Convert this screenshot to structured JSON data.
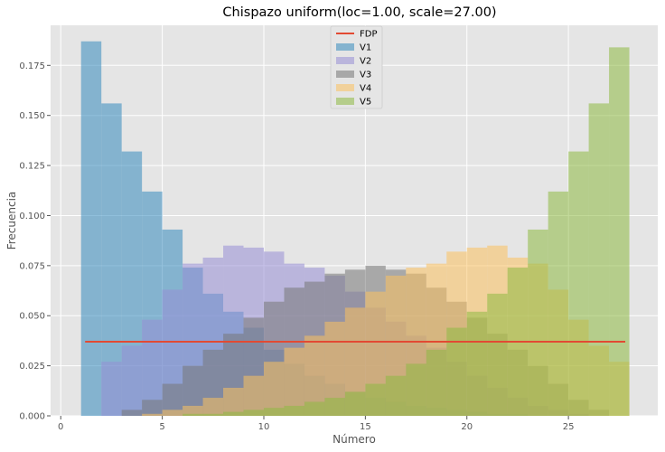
{
  "chart_data": {
    "type": "bar",
    "title": "Chispazo uniform(loc=1.00, scale=27.00)",
    "xlabel": "Número",
    "ylabel": "Frecuencia",
    "xlim": [
      -0.5,
      29.4
    ],
    "ylim": [
      0,
      0.195
    ],
    "x_ticks": [
      0,
      5,
      10,
      15,
      20,
      25
    ],
    "x_tick_labels": [
      "0",
      "5",
      "10",
      "15",
      "20",
      "25"
    ],
    "y_ticks": [
      0,
      0.025,
      0.05,
      0.075,
      0.1,
      0.125,
      0.15,
      0.175
    ],
    "y_tick_labels": [
      "0.000",
      "0.025",
      "0.050",
      "0.075",
      "0.100",
      "0.125",
      "0.150",
      "0.175"
    ],
    "grid": true,
    "legend_position": "top-center",
    "legend": [
      "FDP",
      "V1",
      "V2",
      "V3",
      "V4",
      "V5"
    ],
    "pdf_line": {
      "name": "FDP",
      "x": [
        1.2,
        27.8
      ],
      "y": [
        0.037,
        0.037
      ],
      "color": "#E24A33"
    },
    "series": [
      {
        "name": "V1",
        "color": "#348ABD",
        "bins": [
          [
            1.0,
            2.0,
            0.187
          ],
          [
            2.0,
            3.0,
            0.156
          ],
          [
            3.0,
            4.0,
            0.132
          ],
          [
            4.0,
            5.0,
            0.112
          ],
          [
            5.0,
            6.0,
            0.093
          ],
          [
            6.0,
            7.0,
            0.074
          ],
          [
            7.0,
            8.0,
            0.061
          ],
          [
            8.0,
            9.0,
            0.052
          ],
          [
            9.0,
            10.0,
            0.044
          ],
          [
            10.0,
            11.0,
            0.033
          ],
          [
            11.0,
            12.0,
            0.026
          ],
          [
            12.0,
            13.0,
            0.02
          ],
          [
            13.0,
            14.0,
            0.016
          ],
          [
            14.0,
            15.0,
            0.012
          ],
          [
            15.0,
            16.0,
            0.009
          ],
          [
            16.0,
            17.0,
            0.007
          ],
          [
            17.0,
            18.0,
            0.005
          ],
          [
            18.0,
            19.0,
            0.004
          ],
          [
            19.0,
            20.0,
            0.003
          ],
          [
            20.0,
            21.0,
            0.002
          ],
          [
            21.0,
            22.0,
            0.001
          ],
          [
            22.0,
            23.0,
            0.001
          ]
        ]
      },
      {
        "name": "V2",
        "color": "#988ED5",
        "bins": [
          [
            2.0,
            3.0,
            0.027
          ],
          [
            3.0,
            4.0,
            0.035
          ],
          [
            4.0,
            5.0,
            0.048
          ],
          [
            5.0,
            6.0,
            0.063
          ],
          [
            6.0,
            7.0,
            0.076
          ],
          [
            7.0,
            8.0,
            0.079
          ],
          [
            8.0,
            9.0,
            0.085
          ],
          [
            9.0,
            10.0,
            0.084
          ],
          [
            10.0,
            11.0,
            0.082
          ],
          [
            11.0,
            12.0,
            0.076
          ],
          [
            12.0,
            13.0,
            0.074
          ],
          [
            13.0,
            14.0,
            0.07
          ],
          [
            14.0,
            15.0,
            0.062
          ],
          [
            15.0,
            16.0,
            0.054
          ],
          [
            16.0,
            17.0,
            0.047
          ],
          [
            17.0,
            18.0,
            0.04
          ],
          [
            18.0,
            19.0,
            0.034
          ],
          [
            19.0,
            20.0,
            0.027
          ],
          [
            20.0,
            21.0,
            0.02
          ],
          [
            21.0,
            22.0,
            0.014
          ],
          [
            22.0,
            23.0,
            0.009
          ],
          [
            23.0,
            24.0,
            0.005
          ],
          [
            24.0,
            25.0,
            0.003
          ],
          [
            25.0,
            26.0,
            0.001
          ]
        ]
      },
      {
        "name": "V3",
        "color": "#777777",
        "bins": [
          [
            3.0,
            4.0,
            0.003
          ],
          [
            4.0,
            5.0,
            0.008
          ],
          [
            5.0,
            6.0,
            0.016
          ],
          [
            6.0,
            7.0,
            0.025
          ],
          [
            7.0,
            8.0,
            0.033
          ],
          [
            8.0,
            9.0,
            0.041
          ],
          [
            9.0,
            10.0,
            0.049
          ],
          [
            10.0,
            11.0,
            0.057
          ],
          [
            11.0,
            12.0,
            0.064
          ],
          [
            12.0,
            13.0,
            0.067
          ],
          [
            13.0,
            14.0,
            0.071
          ],
          [
            14.0,
            15.0,
            0.073
          ],
          [
            15.0,
            16.0,
            0.075
          ],
          [
            16.0,
            17.0,
            0.073
          ],
          [
            17.0,
            18.0,
            0.071
          ],
          [
            18.0,
            19.0,
            0.064
          ],
          [
            19.0,
            20.0,
            0.057
          ],
          [
            20.0,
            21.0,
            0.049
          ],
          [
            21.0,
            22.0,
            0.041
          ],
          [
            22.0,
            23.0,
            0.033
          ],
          [
            23.0,
            24.0,
            0.025
          ],
          [
            24.0,
            25.0,
            0.016
          ],
          [
            25.0,
            26.0,
            0.008
          ],
          [
            26.0,
            27.0,
            0.003
          ]
        ]
      },
      {
        "name": "V4",
        "color": "#FBC15E",
        "bins": [
          [
            4.0,
            5.0,
            0.001
          ],
          [
            5.0,
            6.0,
            0.003
          ],
          [
            6.0,
            7.0,
            0.005
          ],
          [
            7.0,
            8.0,
            0.009
          ],
          [
            8.0,
            9.0,
            0.014
          ],
          [
            9.0,
            10.0,
            0.02
          ],
          [
            10.0,
            11.0,
            0.027
          ],
          [
            11.0,
            12.0,
            0.034
          ],
          [
            12.0,
            13.0,
            0.04
          ],
          [
            13.0,
            14.0,
            0.047
          ],
          [
            14.0,
            15.0,
            0.054
          ],
          [
            15.0,
            16.0,
            0.062
          ],
          [
            16.0,
            17.0,
            0.07
          ],
          [
            17.0,
            18.0,
            0.074
          ],
          [
            18.0,
            19.0,
            0.076
          ],
          [
            19.0,
            20.0,
            0.082
          ],
          [
            20.0,
            21.0,
            0.084
          ],
          [
            21.0,
            22.0,
            0.085
          ],
          [
            22.0,
            23.0,
            0.079
          ],
          [
            23.0,
            24.0,
            0.076
          ],
          [
            24.0,
            25.0,
            0.063
          ],
          [
            25.0,
            26.0,
            0.048
          ],
          [
            26.0,
            27.0,
            0.035
          ],
          [
            27.0,
            28.0,
            0.027
          ]
        ]
      },
      {
        "name": "V5",
        "color": "#8EBA42",
        "bins": [
          [
            6.0,
            7.0,
            0.001
          ],
          [
            7.0,
            8.0,
            0.001
          ],
          [
            8.0,
            9.0,
            0.002
          ],
          [
            9.0,
            10.0,
            0.003
          ],
          [
            10.0,
            11.0,
            0.004
          ],
          [
            11.0,
            12.0,
            0.005
          ],
          [
            12.0,
            13.0,
            0.007
          ],
          [
            13.0,
            14.0,
            0.009
          ],
          [
            14.0,
            15.0,
            0.012
          ],
          [
            15.0,
            16.0,
            0.016
          ],
          [
            16.0,
            17.0,
            0.02
          ],
          [
            17.0,
            18.0,
            0.026
          ],
          [
            18.0,
            19.0,
            0.033
          ],
          [
            19.0,
            20.0,
            0.044
          ],
          [
            20.0,
            21.0,
            0.052
          ],
          [
            21.0,
            22.0,
            0.061
          ],
          [
            22.0,
            23.0,
            0.074
          ],
          [
            23.0,
            24.0,
            0.093
          ],
          [
            24.0,
            25.0,
            0.112
          ],
          [
            25.0,
            26.0,
            0.132
          ],
          [
            26.0,
            27.0,
            0.156
          ],
          [
            27.0,
            28.0,
            0.184
          ]
        ]
      }
    ]
  },
  "colors": {
    "plot_background": "#E5E5E5",
    "grid": "#FFFFFF",
    "bar_alpha": 0.55
  }
}
